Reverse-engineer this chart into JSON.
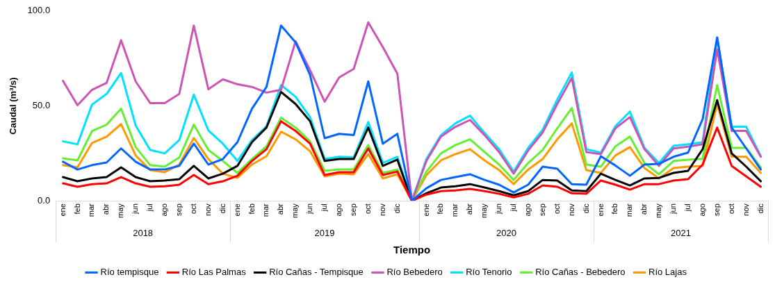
{
  "chart_data": {
    "type": "line",
    "xlabel": "Tiempo",
    "ylabel": "Caudal (m³/s)",
    "categories": [
      "ene",
      "feb",
      "mar",
      "abr",
      "may",
      "jun",
      "jul",
      "ago",
      "sep",
      "oct",
      "nov",
      "dic",
      "ene",
      "feb",
      "mar",
      "abr",
      "may",
      "jun",
      "jul",
      "ago",
      "sep",
      "oct",
      "nov",
      "dic",
      null,
      "ene",
      "feb",
      "mar",
      "abr",
      "may",
      "jun",
      "jul",
      "ago",
      "sep",
      "oct",
      "nov",
      "dic",
      "ene",
      "feb",
      "mar",
      "abr",
      "may",
      "jun",
      "jul",
      "ago",
      "sep",
      "oct",
      "nov",
      "dic"
    ],
    "annotations": [
      "2018",
      "2019",
      "2020",
      "2021"
    ],
    "ylim": [
      0,
      100
    ],
    "yticks": [
      {
        "value": 0,
        "label": "0.0"
      },
      {
        "value": 50,
        "label": "50.0"
      },
      {
        "value": 100,
        "label": "100.0"
      }
    ],
    "grid": false,
    "legend": "bottom",
    "marker": "none",
    "line_style": "solid",
    "series": [
      {
        "name": "Río tempisque",
        "color": "#0066ff",
        "values": [
          20.6,
          16.5,
          18.8,
          20.2,
          27.6,
          20.6,
          16.5,
          16.5,
          18.4,
          30.1,
          19.1,
          22,
          30.9,
          48.5,
          60,
          92.3,
          83.5,
          66.2,
          33,
          35.3,
          34.6,
          62.9,
          30.1,
          35.3,
          0,
          6.6,
          11,
          12.5,
          14,
          11,
          8.5,
          4.4,
          8.5,
          18,
          16.9,
          8.8,
          8.5,
          23.5,
          18.6,
          13.2,
          19.1,
          19.5,
          23.2,
          25.4,
          43,
          86,
          38.6,
          27.6,
          16.5
        ]
      },
      {
        "name": "Río Las Palmas",
        "color": "#ff0000",
        "values": [
          9.2,
          7.4,
          8.8,
          9.2,
          12.5,
          9.2,
          7.4,
          7.7,
          8.5,
          13.6,
          8.8,
          10.3,
          13.2,
          21,
          27.2,
          41.9,
          36.8,
          30.1,
          13.6,
          15.1,
          15.1,
          27.6,
          13.6,
          15.4,
          0,
          3.3,
          5.1,
          5.5,
          6.3,
          5.1,
          3.7,
          1.8,
          3.7,
          8.1,
          7.4,
          4,
          3.7,
          10.7,
          8.5,
          5.9,
          8.8,
          8.8,
          10.7,
          11.4,
          19.1,
          38.6,
          18.4,
          12.9,
          7.4
        ]
      },
      {
        "name": "Río Cañas - Tempisque",
        "color": "#000000",
        "values": [
          12.5,
          10.3,
          11.8,
          12.5,
          17.6,
          12.5,
          10.3,
          10.7,
          11.4,
          18.4,
          11.8,
          14.3,
          18.4,
          30.9,
          38.6,
          57.4,
          51,
          41.9,
          21,
          22,
          22,
          38.6,
          18.4,
          21.7,
          0,
          4,
          7,
          7.7,
          8.8,
          7,
          5.1,
          2.9,
          5.1,
          11,
          10.7,
          5.5,
          5.1,
          14.3,
          11,
          8.1,
          11.8,
          12.1,
          14.7,
          15.8,
          27.2,
          53,
          25,
          18,
          10.3
        ]
      },
      {
        "name": "Río Bebedero",
        "color": "#cc55b4",
        "values": [
          63.2,
          50.4,
          58.5,
          62.1,
          84.6,
          62.9,
          51.5,
          51.5,
          56.3,
          92.3,
          58.8,
          64,
          61.4,
          60,
          57,
          58.5,
          84,
          68.8,
          52.2,
          65,
          69.5,
          94,
          81,
          67,
          0,
          21,
          33.8,
          39,
          42.6,
          34.6,
          25.7,
          14.3,
          26.5,
          36,
          51,
          64.7,
          25.7,
          24.6,
          38.2,
          44.1,
          27.2,
          18.4,
          27.6,
          28.5,
          29.8,
          79.8,
          36.8,
          36.8,
          23.2
        ]
      },
      {
        "name": "Río Tenorio",
        "color": "#00e0ff",
        "values": [
          31.3,
          29.8,
          50.7,
          56.3,
          67.3,
          39.7,
          26.8,
          25,
          32,
          55.9,
          37.1,
          30.1,
          21,
          32,
          39.3,
          61,
          54.8,
          44,
          22,
          23.2,
          22.9,
          41.5,
          20,
          23.2,
          0,
          22,
          34.6,
          40.8,
          44.9,
          35.7,
          27.2,
          15.4,
          27.9,
          37.5,
          53.3,
          67.6,
          27.2,
          25.4,
          39.3,
          47,
          27.9,
          19.9,
          29,
          29.8,
          30.9,
          86,
          39,
          39,
          23.5
        ]
      },
      {
        "name": "Río Cañas - Bebedero",
        "color": "#66ee33",
        "values": [
          22.4,
          21.3,
          36.8,
          40.1,
          48.5,
          28.3,
          18.8,
          18,
          22.8,
          40.1,
          26.8,
          21,
          14.7,
          22,
          28.7,
          43.8,
          38.6,
          31.3,
          15.8,
          16.5,
          16.5,
          29.4,
          14.7,
          16.5,
          0,
          15.4,
          25,
          29.4,
          32.4,
          25.7,
          19.1,
          11,
          19.9,
          26.8,
          38.2,
          48.9,
          19.1,
          18,
          28.7,
          33.8,
          19.9,
          14,
          21,
          21.7,
          22.1,
          61,
          27.9,
          27.9,
          17.6
        ]
      },
      {
        "name": "Río Lajas",
        "color": "#ff9900",
        "values": [
          18.8,
          17.6,
          30.5,
          33.8,
          40.4,
          23.9,
          16.2,
          15.1,
          19.1,
          33.1,
          22,
          14.3,
          12.1,
          19.1,
          23.5,
          36.4,
          32.4,
          26.1,
          12.9,
          14.3,
          14,
          24.6,
          11.8,
          14,
          0,
          13.6,
          21.3,
          24.6,
          27.2,
          21.3,
          16.2,
          8.8,
          16.5,
          22,
          32.4,
          40.8,
          16.2,
          14.7,
          23.9,
          28.3,
          17.3,
          11.8,
          17.3,
          18,
          18.4,
          51,
          23.2,
          23.2,
          14.7
        ]
      }
    ]
  }
}
